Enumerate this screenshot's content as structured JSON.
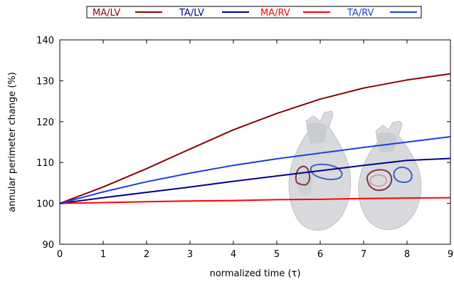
{
  "chart_data": {
    "type": "line",
    "xlabel": "normalized time (τ)",
    "ylabel": "annular perimeter change (%)",
    "xlim": [
      0,
      9
    ],
    "ylim": [
      90,
      140
    ],
    "x_ticks": [
      "0",
      "1",
      "2",
      "3",
      "4",
      "5",
      "6",
      "7",
      "8",
      "9"
    ],
    "y_ticks": [
      "90",
      "100",
      "110",
      "120",
      "130",
      "140"
    ],
    "grid": false,
    "legend_position": "top",
    "x": [
      0,
      1,
      2,
      3,
      4,
      5,
      6,
      7,
      8,
      9
    ],
    "series": [
      {
        "name": "MA/LV",
        "color": "#8b0000",
        "values": [
          100,
          104,
          108.5,
          113.3,
          118,
          122,
          125.5,
          128.2,
          130.2,
          131.7
        ]
      },
      {
        "name": "TA/LV",
        "color": "#00008b",
        "values": [
          100,
          101.4,
          102.7,
          104,
          105.4,
          106.7,
          108,
          109.3,
          110.5,
          111.0
        ]
      },
      {
        "name": "MA/RV",
        "color": "#ff0000",
        "values": [
          100,
          100.2,
          100.4,
          100.6,
          100.7,
          100.9,
          101.0,
          101.2,
          101.3,
          101.4
        ]
      },
      {
        "name": "TA/RV",
        "color": "#1a3fe0",
        "values": [
          100,
          102.8,
          105.3,
          107.4,
          109.3,
          110.9,
          112.3,
          113.7,
          115.0,
          116.3
        ]
      }
    ]
  }
}
